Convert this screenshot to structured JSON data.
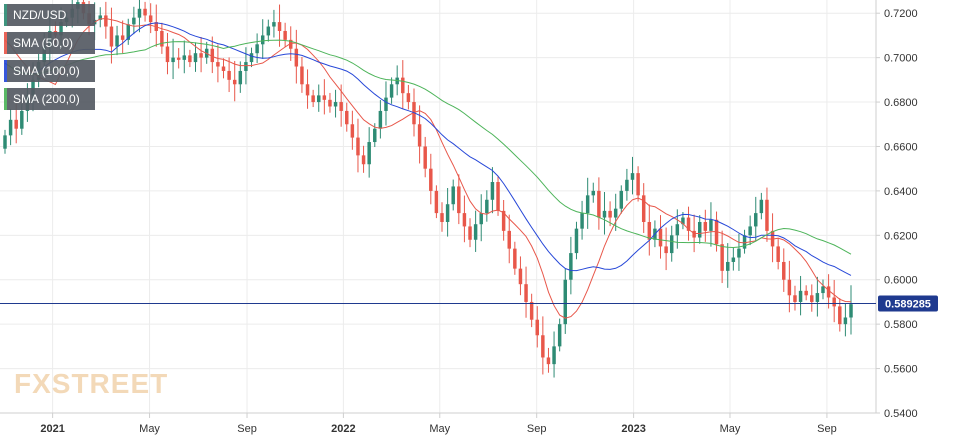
{
  "chart_data": {
    "type": "candlestick",
    "symbol": "NZD/USD",
    "watermark": "FXSTREET",
    "current_price_label": "0.589285",
    "current_price": 0.589285,
    "ylim": [
      0.54,
      0.73
    ],
    "y_ticks": [
      0.72,
      0.7,
      0.68,
      0.66,
      0.64,
      0.62,
      0.6,
      0.58,
      0.56,
      0.54
    ],
    "y_tick_labels": [
      "0.7200",
      "0.7000",
      "0.6800",
      "0.6600",
      "0.6400",
      "0.6200",
      "0.6000",
      "0.5800",
      "0.5600",
      "0.5400"
    ],
    "x_ticks": [
      {
        "label": "2021",
        "week": 8.5,
        "bold": true
      },
      {
        "label": "May",
        "week": 25.8,
        "bold": false
      },
      {
        "label": "Sep",
        "week": 43.2,
        "bold": false
      },
      {
        "label": "2022",
        "week": 60.4,
        "bold": true
      },
      {
        "label": "May",
        "week": 77.6,
        "bold": false
      },
      {
        "label": "Sep",
        "week": 94.9,
        "bold": false
      },
      {
        "label": "2023",
        "week": 112.2,
        "bold": true
      },
      {
        "label": "May",
        "week": 129.4,
        "bold": false
      },
      {
        "label": "Sep",
        "week": 146.7,
        "bold": false
      }
    ],
    "legend": [
      {
        "label": "NZD/USD",
        "color": "#2e8b74"
      },
      {
        "label": "SMA (50,0)",
        "color": "#e8574a"
      },
      {
        "label": "SMA (100,0)",
        "color": "#2748d8"
      },
      {
        "label": "SMA (200,0)",
        "color": "#4db45a"
      }
    ],
    "close": [
      0.665,
      0.672,
      0.668,
      0.676,
      0.683,
      0.69,
      0.698,
      0.705,
      0.712,
      0.71,
      0.716,
      0.718,
      0.722,
      0.725,
      0.72,
      0.715,
      0.717,
      0.719,
      0.714,
      0.705,
      0.71,
      0.708,
      0.715,
      0.718,
      0.722,
      0.719,
      0.716,
      0.712,
      0.705,
      0.698,
      0.7,
      0.699,
      0.701,
      0.698,
      0.702,
      0.7,
      0.704,
      0.698,
      0.696,
      0.694,
      0.69,
      0.688,
      0.694,
      0.698,
      0.702,
      0.706,
      0.71,
      0.714,
      0.716,
      0.712,
      0.708,
      0.704,
      0.696,
      0.688,
      0.683,
      0.68,
      0.683,
      0.681,
      0.678,
      0.68,
      0.676,
      0.67,
      0.664,
      0.656,
      0.652,
      0.662,
      0.668,
      0.676,
      0.682,
      0.688,
      0.691,
      0.684,
      0.68,
      0.67,
      0.66,
      0.65,
      0.64,
      0.63,
      0.626,
      0.634,
      0.642,
      0.63,
      0.624,
      0.618,
      0.625,
      0.63,
      0.636,
      0.644,
      0.631,
      0.622,
      0.614,
      0.605,
      0.598,
      0.59,
      0.582,
      0.575,
      0.565,
      0.562,
      0.57,
      0.58,
      0.6,
      0.612,
      0.623,
      0.63,
      0.638,
      0.64,
      0.628,
      0.631,
      0.628,
      0.632,
      0.64,
      0.645,
      0.648,
      0.638,
      0.626,
      0.618,
      0.623,
      0.615,
      0.612,
      0.62,
      0.625,
      0.628,
      0.622,
      0.619,
      0.626,
      0.622,
      0.627,
      0.616,
      0.604,
      0.608,
      0.61,
      0.614,
      0.62,
      0.624,
      0.63,
      0.636,
      0.622,
      0.615,
      0.608,
      0.6,
      0.593,
      0.59,
      0.595,
      0.593,
      0.59,
      0.594,
      0.597,
      0.592,
      0.588,
      0.58,
      0.583,
      0.589
    ],
    "ma_seed": [
      0.668,
      0.67,
      0.675,
      0.682,
      0.689,
      0.696,
      0.703,
      0.709,
      0.712,
      0.714,
      0.717,
      0.719,
      0.721,
      0.722
    ],
    "sma_periods": [
      50,
      100,
      200
    ]
  }
}
